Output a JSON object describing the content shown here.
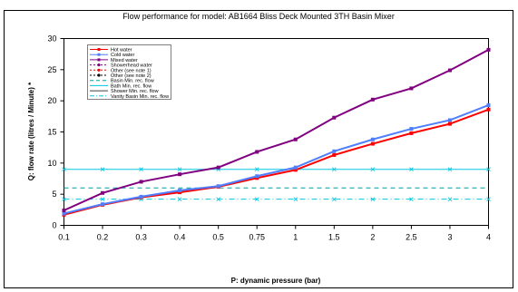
{
  "chart_data": {
    "type": "line",
    "title": "Flow performance for model: AB1664   Bliss Deck Mounted 3TH Basin Mixer",
    "xlabel": "P: dynamic pressure (bar)",
    "ylabel": "Q: flow rate (litres / Minute) *",
    "x_categories": [
      "0.1",
      "0.2",
      "0.3",
      "0.4",
      "0.5",
      "0.75",
      "1",
      "1.5",
      "2",
      "2.5",
      "3",
      "4"
    ],
    "y_ticks": [
      "0",
      "5",
      "10",
      "15",
      "20",
      "25",
      "30"
    ],
    "ylim": [
      0,
      30
    ],
    "grid": false,
    "legend_position": "top-left",
    "series": [
      {
        "name": "Hot water",
        "color": "#ff0000",
        "marker": "square",
        "values": [
          1.7,
          3.3,
          4.5,
          5.3,
          6.2,
          7.6,
          8.9,
          11.3,
          13.1,
          14.8,
          16.3,
          18.6
        ]
      },
      {
        "name": "Cold water",
        "color": "#4f7fff",
        "marker": "square",
        "values": [
          1.9,
          3.4,
          4.6,
          5.6,
          6.3,
          7.9,
          9.3,
          11.9,
          13.8,
          15.5,
          16.9,
          19.3
        ]
      },
      {
        "name": "Mixed water",
        "color": "#800080",
        "marker": "square",
        "values": [
          2.4,
          5.2,
          7.0,
          8.2,
          9.3,
          11.8,
          13.8,
          17.3,
          20.2,
          22.0,
          24.9,
          28.2
        ]
      }
    ],
    "reference_lines": [
      {
        "name": "Basin Min. rec. flow",
        "color": "#00a0a0",
        "dash": "5,4",
        "value": 6.0
      },
      {
        "name": "Bath Min. rec. flow",
        "color": "#00c8e0",
        "dash": "",
        "value": 9.0
      },
      {
        "name": "Vanity Basin Min. rec. flow",
        "color": "#00c8e0",
        "dash": "6,3,1,3",
        "value": 4.2
      }
    ],
    "legend": [
      {
        "label": "Hot water",
        "color": "#ff0000",
        "dash": "",
        "marker": "square"
      },
      {
        "label": "Cold water",
        "color": "#4f7fff",
        "dash": "",
        "marker": "square"
      },
      {
        "label": "Mixed water",
        "color": "#800080",
        "dash": "",
        "marker": "square"
      },
      {
        "label": "Showerhead water",
        "color": "#800080",
        "dash": "2,2",
        "marker": "circle"
      },
      {
        "label": "Other (see note 1)",
        "color": "#ff0000",
        "dash": "2,2",
        "marker": "circle"
      },
      {
        "label": "Other (see note 2)",
        "color": "#000000",
        "dash": "2,2",
        "marker": "circle"
      },
      {
        "label": "Basin Min. rec. flow",
        "color": "#00a0a0",
        "dash": "4,3",
        "marker": "none"
      },
      {
        "label": "Bath Min. rec. flow",
        "color": "#00c8e0",
        "dash": "",
        "marker": "none"
      },
      {
        "label": "Shower Min. rec. flow",
        "color": "#404040",
        "dash": "",
        "marker": "none"
      },
      {
        "label": "Vanity Basin Min. rec. flow",
        "color": "#00c8e0",
        "dash": "5,2,1,2",
        "marker": "none"
      }
    ]
  }
}
